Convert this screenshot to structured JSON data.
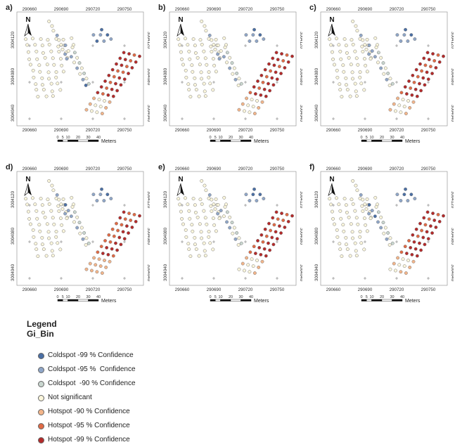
{
  "panels": [
    {
      "label": "a)",
      "coldspot": "a"
    },
    {
      "label": "b)",
      "coldspot": "b"
    },
    {
      "label": "c)",
      "coldspot": "c"
    },
    {
      "label": "d)",
      "coldspot": "d"
    },
    {
      "label": "e)",
      "coldspot": "e"
    },
    {
      "label": "f)",
      "coldspot": "f"
    }
  ],
  "map": {
    "x_ticks": [
      "290660",
      "290690",
      "290720",
      "290750"
    ],
    "y_ticks": [
      "3004120",
      "3004080",
      "3004040"
    ],
    "north_label": "N",
    "scale_ticks": [
      "0",
      "5",
      "10",
      "20",
      "30",
      "40"
    ],
    "scale_unit": "Meters"
  },
  "legend": {
    "title": "Legend",
    "subtitle": "Gi_Bin",
    "items": [
      {
        "label": "Coldspot -99 % Confidence",
        "color": "#4a6fa5"
      },
      {
        "label": "Coldspot -95 %  Confidence",
        "color": "#8fa6c8"
      },
      {
        "label": "Coldspot  -90 % Confidence",
        "color": "#c9d6cf"
      },
      {
        "label": "Not significant",
        "color": "#fbf6dc"
      },
      {
        "label": "Hotspot -90 % Confidence",
        "color": "#f3b58a"
      },
      {
        "label": "Hotspot -95 % Confidence",
        "color": "#e06a45"
      },
      {
        "label": "Hotspot -99 % Confidence",
        "color": "#b42a2a"
      }
    ]
  }
}
